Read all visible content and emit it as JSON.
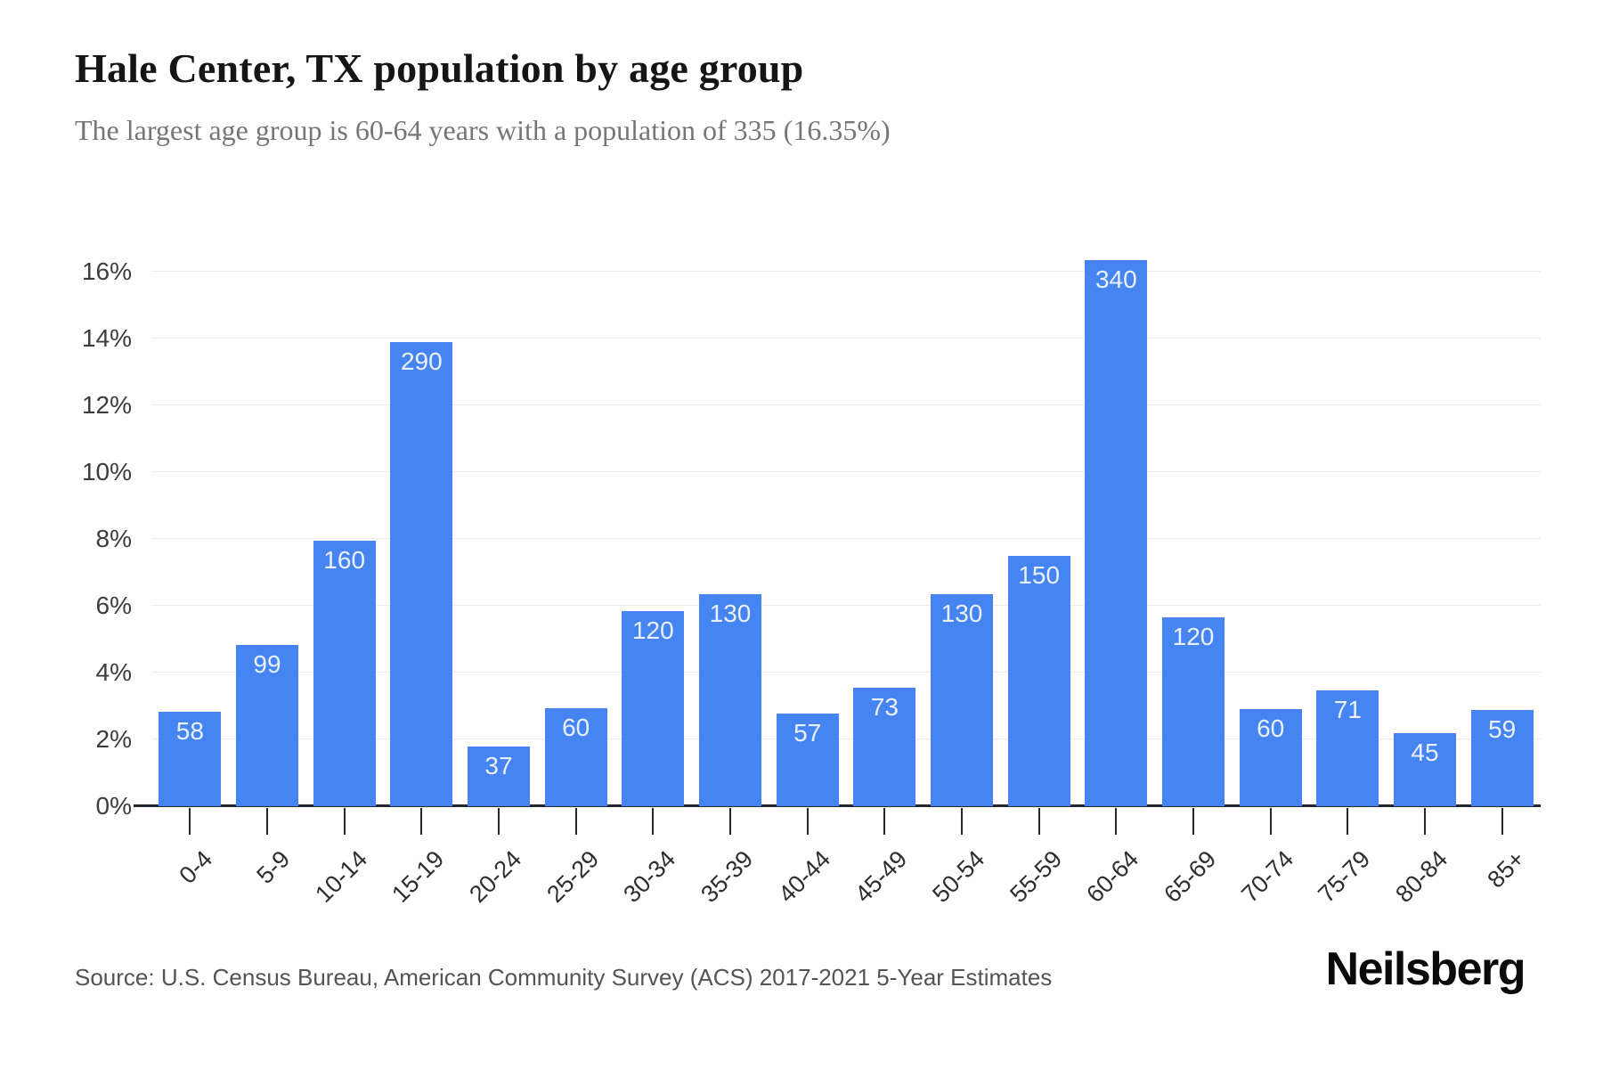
{
  "chart_data": {
    "type": "bar",
    "title": "Hale Center, TX population by age group",
    "subtitle": "The largest age group is 60-64 years with a population of 335 (16.35%)",
    "xlabel": "",
    "ylabel": "",
    "categories": [
      "0-4",
      "5-9",
      "10-14",
      "15-19",
      "20-24",
      "25-29",
      "30-34",
      "35-39",
      "40-44",
      "45-49",
      "50-54",
      "55-59",
      "60-64",
      "65-69",
      "70-74",
      "75-79",
      "80-84",
      "85+"
    ],
    "values": [
      58,
      99,
      160,
      290,
      37,
      60,
      120,
      130,
      57,
      73,
      130,
      150,
      340,
      120,
      60,
      71,
      45,
      59
    ],
    "bar_heights_pct": [
      2.83,
      4.83,
      7.95,
      13.9,
      1.8,
      2.93,
      5.85,
      6.35,
      2.78,
      3.56,
      6.35,
      7.5,
      16.35,
      5.66,
      2.9,
      3.46,
      2.2,
      2.88
    ],
    "ylim": [
      0,
      16.67
    ],
    "ytick_values": [
      0,
      2,
      4,
      6,
      8,
      10,
      12,
      14,
      16
    ],
    "ytick_labels": [
      "0%",
      "2%",
      "4%",
      "6%",
      "8%",
      "10%",
      "12%",
      "14%",
      "16%"
    ],
    "grid": "horizontal",
    "legend": "none"
  },
  "footer": {
    "source": "Source: U.S. Census Bureau, American Community Survey (ACS) 2017-2021 5-Year Estimates",
    "brand": "Neilsberg"
  },
  "colors": {
    "bar": "#4685f1",
    "bar_label": "#eaf1fd",
    "grid_line": "#ededed",
    "axis_line": "#23272f",
    "title": "#151515",
    "subtitle": "#767676",
    "tick_label": "#3c3c3c",
    "x_tick_label": "#2e2e2e",
    "source_text": "#545454",
    "brand_text": "#0a0a0a",
    "background": "#ffffff"
  }
}
